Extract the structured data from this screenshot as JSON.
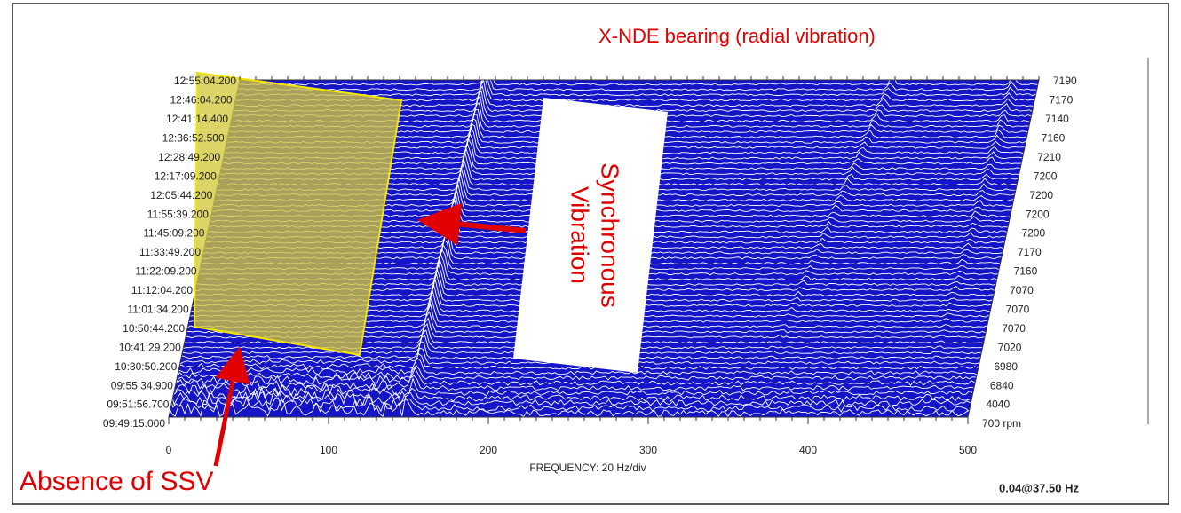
{
  "title": "X-NDE bearing (radial vibration)",
  "annotations": {
    "sync_line1": "Synchronous",
    "sync_line2": "Vibration",
    "absence": "Absence of SSV"
  },
  "time_labels": [
    "12:55:04.200",
    "12:46:04.200",
    "12:41:14.400",
    "12:36:52.500",
    "12:28:49.200",
    "12:17:09.200",
    "12:05:44.200",
    "11:55:39.200",
    "11:45:09.200",
    "11:33:49.200",
    "11:22:09.200",
    "11:12:04.200",
    "11:01:34.200",
    "10:50:44.200",
    "10:41:29.200",
    "10:30:50.200",
    "09:55:34.900",
    "09:51:56.700",
    "09:49:15.000"
  ],
  "rpm_labels": [
    "7190",
    "7170",
    "7140",
    "7160",
    "7210",
    "7200",
    "7200",
    "7200",
    "7200",
    "7170",
    "7160",
    "7070",
    "7070",
    "7070",
    "7020",
    "6980",
    "6840",
    "4040",
    "700 rpm"
  ],
  "x_axis": {
    "label": "FREQUENCY: 20 Hz/div",
    "range": [
      0,
      500
    ],
    "ticks": [
      0,
      100,
      200,
      300,
      400,
      500
    ]
  },
  "cursor_readout": "0.04@37.50 Hz"
}
